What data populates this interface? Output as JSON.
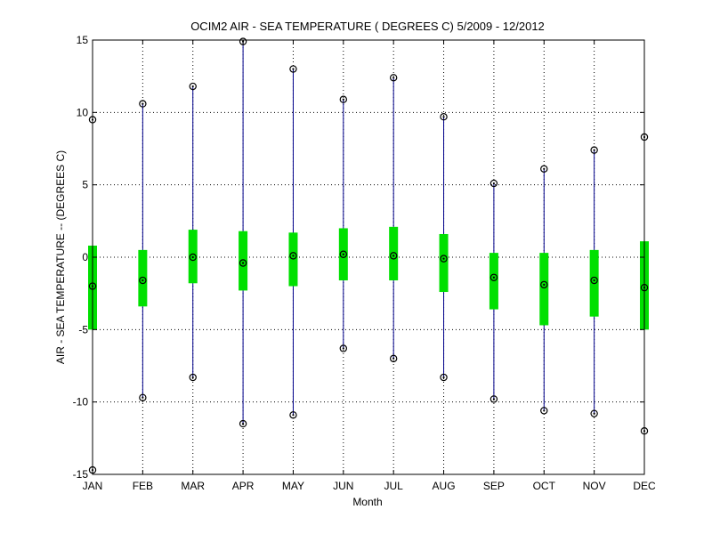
{
  "chart_data": {
    "type": "boxplot",
    "title": "OCIM2  AIR - SEA TEMPERATURE ( DEGREES C) 5/2009 - 12/2012",
    "xlabel": "Month",
    "ylabel": "AIR - SEA TEMPERATURE -- (DEGREES C)",
    "ylim": [
      -15,
      15
    ],
    "yticks": [
      -15,
      -10,
      -5,
      0,
      5,
      10,
      15
    ],
    "grid": true,
    "categories": [
      "JAN",
      "FEB",
      "MAR",
      "APR",
      "MAY",
      "JUN",
      "JUL",
      "AUG",
      "SEP",
      "OCT",
      "NOV",
      "DEC"
    ],
    "series": [
      {
        "min": [
          -14.7,
          -9.7,
          -8.3,
          -11.5,
          -10.9,
          -6.3,
          -7.0,
          -8.3,
          -9.8,
          -10.6,
          -10.8,
          -12.0
        ],
        "q1": [
          -5.0,
          -3.4,
          -1.8,
          -2.3,
          -2.0,
          -1.6,
          -1.6,
          -2.4,
          -3.6,
          -4.7,
          -4.1,
          -5.0
        ],
        "median": [
          -2.0,
          -1.6,
          0.0,
          -0.4,
          0.1,
          0.2,
          0.1,
          -0.1,
          -1.4,
          -1.9,
          -1.6,
          -2.1
        ],
        "q3": [
          0.8,
          0.5,
          1.9,
          1.8,
          1.7,
          2.0,
          2.1,
          1.6,
          0.3,
          0.3,
          0.5,
          1.1
        ],
        "max": [
          9.5,
          10.6,
          11.8,
          14.9,
          13.0,
          10.9,
          12.4,
          9.7,
          5.1,
          6.1,
          7.4,
          8.3
        ]
      }
    ],
    "colors": {
      "whisker": "#00008b",
      "box": "#00e000",
      "marker": "#000000",
      "grid": "#000000"
    }
  }
}
